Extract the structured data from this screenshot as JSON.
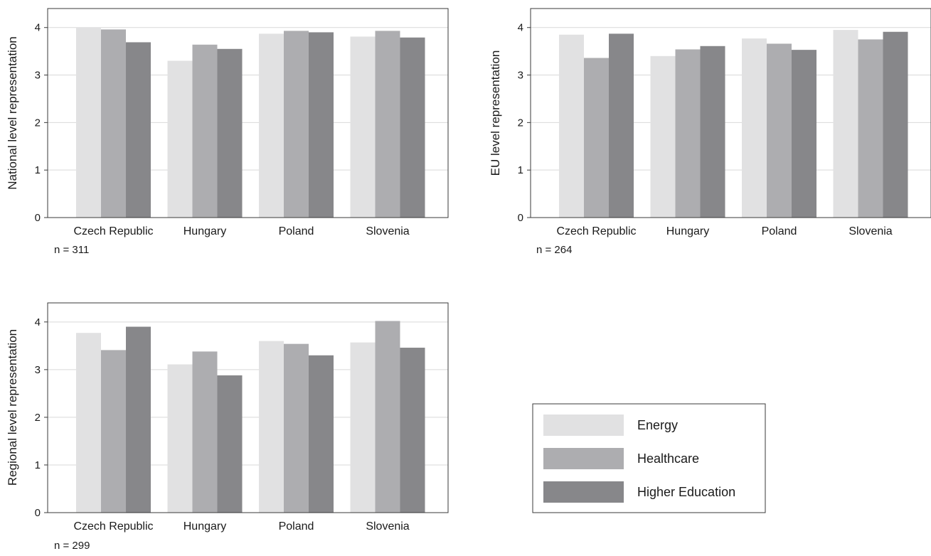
{
  "chart_data": [
    {
      "type": "bar",
      "ylabel": "National level representation",
      "note": "n = 311",
      "categories": [
        "Czech Republic",
        "Hungary",
        "Poland",
        "Slovenia"
      ],
      "ylim": [
        0,
        4.4
      ],
      "yticks": [
        0,
        1,
        2,
        3,
        4
      ],
      "grid": true,
      "series": [
        {
          "name": "Energy",
          "values": [
            4.0,
            3.3,
            3.87,
            3.81
          ]
        },
        {
          "name": "Healthcare",
          "values": [
            3.96,
            3.64,
            3.93,
            3.93
          ]
        },
        {
          "name": "Higher Education",
          "values": [
            3.69,
            3.55,
            3.9,
            3.79
          ]
        }
      ]
    },
    {
      "type": "bar",
      "ylabel": "EU level representation",
      "note": "n = 264",
      "categories": [
        "Czech Republic",
        "Hungary",
        "Poland",
        "Slovenia"
      ],
      "ylim": [
        0,
        4.4
      ],
      "yticks": [
        0,
        1,
        2,
        3,
        4
      ],
      "grid": true,
      "series": [
        {
          "name": "Energy",
          "values": [
            3.85,
            3.4,
            3.77,
            3.95
          ]
        },
        {
          "name": "Healthcare",
          "values": [
            3.36,
            3.54,
            3.66,
            3.75
          ]
        },
        {
          "name": "Higher Education",
          "values": [
            3.87,
            3.61,
            3.53,
            3.91
          ]
        }
      ]
    },
    {
      "type": "bar",
      "ylabel": "Regional level representation",
      "note": "n = 299",
      "categories": [
        "Czech Republic",
        "Hungary",
        "Poland",
        "Slovenia"
      ],
      "ylim": [
        0,
        4.4
      ],
      "yticks": [
        0,
        1,
        2,
        3,
        4
      ],
      "grid": true,
      "series": [
        {
          "name": "Energy",
          "values": [
            3.77,
            3.11,
            3.6,
            3.57
          ]
        },
        {
          "name": "Healthcare",
          "values": [
            3.41,
            3.38,
            3.54,
            4.02
          ]
        },
        {
          "name": "Higher Education",
          "values": [
            3.9,
            2.88,
            3.3,
            3.46
          ]
        }
      ]
    }
  ],
  "legend": {
    "placement": "bottom-right",
    "items": [
      {
        "label": "Energy",
        "color": "#e1e1e2"
      },
      {
        "label": "Healthcare",
        "color": "#adadb0"
      },
      {
        "label": "Higher Education",
        "color": "#87878a"
      }
    ]
  },
  "colors": {
    "grid": "#d9d9d9",
    "frame": "#3a3a3a",
    "text": "#1a1a1a"
  }
}
